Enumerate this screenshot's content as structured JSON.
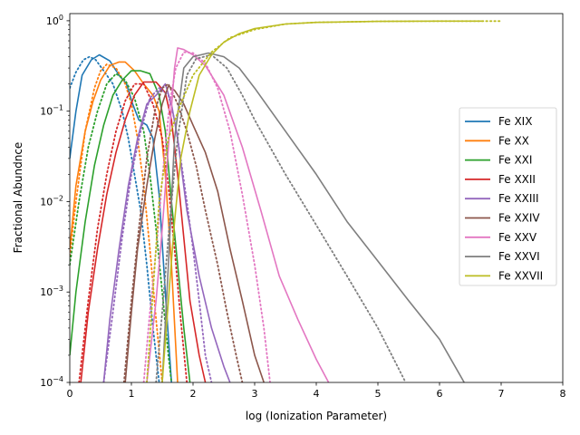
{
  "chart_data": {
    "type": "line",
    "title": "",
    "xlabel": "log (Ionization Parameter)",
    "ylabel": "Fractional Abundnce",
    "xlim": [
      0,
      8
    ],
    "ylim": [
      0.0001,
      1.2
    ],
    "yscale": "log",
    "xticks": [
      "0",
      "1",
      "2",
      "3",
      "4",
      "5",
      "6",
      "7",
      "8"
    ],
    "yticks": [
      {
        "value": 0.0001,
        "base": "10",
        "exp": "−4"
      },
      {
        "value": 0.001,
        "base": "10",
        "exp": "−3"
      },
      {
        "value": 0.01,
        "base": "10",
        "exp": "−2"
      },
      {
        "value": 0.1,
        "base": "10",
        "exp": "−1"
      },
      {
        "value": 1,
        "base": "10",
        "exp": "0"
      }
    ],
    "grid": false,
    "legend": "center-right",
    "series": [
      {
        "name": "Fe XIX",
        "color": "#1f77b4",
        "solid": [
          [
            0,
            0.03
          ],
          [
            0.1,
            0.1
          ],
          [
            0.2,
            0.25
          ],
          [
            0.35,
            0.37
          ],
          [
            0.48,
            0.42
          ],
          [
            0.65,
            0.36
          ],
          [
            0.8,
            0.25
          ],
          [
            0.92,
            0.2
          ],
          [
            1.02,
            0.12
          ],
          [
            1.12,
            0.08
          ],
          [
            1.25,
            0.07
          ],
          [
            1.35,
            0.05
          ],
          [
            1.45,
            0.012
          ],
          [
            1.55,
            0.001
          ],
          [
            1.65,
            0.0001
          ]
        ],
        "dotted": [
          [
            0,
            0.18
          ],
          [
            0.1,
            0.27
          ],
          [
            0.22,
            0.37
          ],
          [
            0.32,
            0.4
          ],
          [
            0.42,
            0.37
          ],
          [
            0.55,
            0.28
          ],
          [
            0.7,
            0.2
          ],
          [
            0.85,
            0.1
          ],
          [
            0.95,
            0.05
          ],
          [
            1.05,
            0.02
          ],
          [
            1.15,
            0.008
          ],
          [
            1.25,
            0.002
          ],
          [
            1.35,
            0.0004
          ],
          [
            1.45,
            0.0001
          ]
        ]
      },
      {
        "name": "Fe XX",
        "color": "#ff7f0e",
        "solid": [
          [
            0,
            0.003
          ],
          [
            0.1,
            0.015
          ],
          [
            0.25,
            0.06
          ],
          [
            0.38,
            0.13
          ],
          [
            0.5,
            0.22
          ],
          [
            0.65,
            0.32
          ],
          [
            0.8,
            0.35
          ],
          [
            0.9,
            0.35
          ],
          [
            1.05,
            0.28
          ],
          [
            1.2,
            0.2
          ],
          [
            1.35,
            0.15
          ],
          [
            1.45,
            0.1
          ],
          [
            1.55,
            0.02
          ],
          [
            1.65,
            0.002
          ],
          [
            1.75,
            0.0001
          ]
        ],
        "dotted": [
          [
            0,
            0.0025
          ],
          [
            0.1,
            0.01
          ],
          [
            0.25,
            0.06
          ],
          [
            0.4,
            0.18
          ],
          [
            0.5,
            0.28
          ],
          [
            0.6,
            0.33
          ],
          [
            0.75,
            0.3
          ],
          [
            0.9,
            0.2
          ],
          [
            1.0,
            0.12
          ],
          [
            1.1,
            0.05
          ],
          [
            1.2,
            0.015
          ],
          [
            1.3,
            0.003
          ],
          [
            1.4,
            0.0005
          ],
          [
            1.5,
            0.0001
          ]
        ]
      },
      {
        "name": "Fe XXI",
        "color": "#2ca02c",
        "solid": [
          [
            0,
            0.0002
          ],
          [
            0.1,
            0.001
          ],
          [
            0.25,
            0.006
          ],
          [
            0.4,
            0.025
          ],
          [
            0.55,
            0.07
          ],
          [
            0.7,
            0.15
          ],
          [
            0.85,
            0.22
          ],
          [
            1.0,
            0.28
          ],
          [
            1.15,
            0.28
          ],
          [
            1.3,
            0.26
          ],
          [
            1.45,
            0.15
          ],
          [
            1.55,
            0.06
          ],
          [
            1.65,
            0.01
          ],
          [
            1.75,
            0.002
          ],
          [
            1.85,
            0.0004
          ],
          [
            1.95,
            0.0001
          ]
        ],
        "dotted": [
          [
            0,
            0.002
          ],
          [
            0.15,
            0.01
          ],
          [
            0.3,
            0.04
          ],
          [
            0.45,
            0.1
          ],
          [
            0.6,
            0.2
          ],
          [
            0.75,
            0.26
          ],
          [
            0.9,
            0.22
          ],
          [
            1.05,
            0.14
          ],
          [
            1.2,
            0.06
          ],
          [
            1.3,
            0.02
          ],
          [
            1.4,
            0.005
          ],
          [
            1.5,
            0.001
          ],
          [
            1.6,
            0.0002
          ],
          [
            1.65,
            0.0001
          ]
        ]
      },
      {
        "name": "Fe XXII",
        "color": "#d62728",
        "solid": [
          [
            0.18,
            0.0001
          ],
          [
            0.3,
            0.0006
          ],
          [
            0.45,
            0.003
          ],
          [
            0.6,
            0.012
          ],
          [
            0.75,
            0.035
          ],
          [
            0.9,
            0.08
          ],
          [
            1.05,
            0.15
          ],
          [
            1.2,
            0.21
          ],
          [
            1.4,
            0.21
          ],
          [
            1.55,
            0.16
          ],
          [
            1.65,
            0.08
          ],
          [
            1.75,
            0.02
          ],
          [
            1.85,
            0.004
          ],
          [
            1.95,
            0.0008
          ],
          [
            2.1,
            0.0002
          ],
          [
            2.2,
            0.0001
          ]
        ],
        "dotted": [
          [
            0.15,
            0.0001
          ],
          [
            0.3,
            0.0008
          ],
          [
            0.45,
            0.005
          ],
          [
            0.6,
            0.02
          ],
          [
            0.75,
            0.06
          ],
          [
            0.9,
            0.13
          ],
          [
            1.05,
            0.2
          ],
          [
            1.2,
            0.2
          ],
          [
            1.35,
            0.12
          ],
          [
            1.5,
            0.05
          ],
          [
            1.6,
            0.015
          ],
          [
            1.7,
            0.003
          ],
          [
            1.8,
            0.0005
          ],
          [
            1.9,
            0.0001
          ]
        ]
      },
      {
        "name": "Fe XXIII",
        "color": "#9467bd",
        "solid": [
          [
            0.55,
            0.0001
          ],
          [
            0.65,
            0.0005
          ],
          [
            0.8,
            0.003
          ],
          [
            0.95,
            0.015
          ],
          [
            1.1,
            0.05
          ],
          [
            1.25,
            0.12
          ],
          [
            1.4,
            0.15
          ],
          [
            1.55,
            0.2
          ],
          [
            1.65,
            0.12
          ],
          [
            1.75,
            0.05
          ],
          [
            1.9,
            0.008
          ],
          [
            2.1,
            0.0015
          ],
          [
            2.3,
            0.0004
          ],
          [
            2.5,
            0.00015
          ],
          [
            2.6,
            0.0001
          ]
        ],
        "dotted": [
          [
            0.55,
            0.0001
          ],
          [
            0.7,
            0.0006
          ],
          [
            0.85,
            0.004
          ],
          [
            1.0,
            0.02
          ],
          [
            1.15,
            0.06
          ],
          [
            1.3,
            0.14
          ],
          [
            1.45,
            0.18
          ],
          [
            1.6,
            0.15
          ],
          [
            1.7,
            0.08
          ],
          [
            1.8,
            0.03
          ],
          [
            1.9,
            0.01
          ],
          [
            2.0,
            0.003
          ],
          [
            2.1,
            0.0008
          ],
          [
            2.2,
            0.0002
          ],
          [
            2.3,
            0.0001
          ]
        ]
      },
      {
        "name": "Fe XXIV",
        "color": "#8c564b",
        "solid": [
          [
            0.9,
            0.0001
          ],
          [
            1.0,
            0.0006
          ],
          [
            1.1,
            0.003
          ],
          [
            1.25,
            0.015
          ],
          [
            1.38,
            0.05
          ],
          [
            1.5,
            0.12
          ],
          [
            1.6,
            0.19
          ],
          [
            1.7,
            0.17
          ],
          [
            1.85,
            0.12
          ],
          [
            2.0,
            0.07
          ],
          [
            2.2,
            0.035
          ],
          [
            2.4,
            0.013
          ],
          [
            2.6,
            0.003
          ],
          [
            2.8,
            0.0008
          ],
          [
            3.0,
            0.0002
          ],
          [
            3.15,
            0.0001
          ]
        ],
        "dotted": [
          [
            0.88,
            0.0001
          ],
          [
            1.0,
            0.0008
          ],
          [
            1.12,
            0.005
          ],
          [
            1.25,
            0.03
          ],
          [
            1.38,
            0.1
          ],
          [
            1.5,
            0.18
          ],
          [
            1.6,
            0.2
          ],
          [
            1.75,
            0.12
          ],
          [
            1.9,
            0.06
          ],
          [
            2.05,
            0.025
          ],
          [
            2.2,
            0.008
          ],
          [
            2.4,
            0.002
          ],
          [
            2.55,
            0.0006
          ],
          [
            2.7,
            0.0002
          ],
          [
            2.8,
            0.0001
          ]
        ]
      },
      {
        "name": "Fe XXV",
        "color": "#e377c2",
        "solid": [
          [
            1.25,
            0.0001
          ],
          [
            1.4,
            0.0008
          ],
          [
            1.5,
            0.005
          ],
          [
            1.6,
            0.04
          ],
          [
            1.7,
            0.3
          ],
          [
            1.75,
            0.5
          ],
          [
            1.85,
            0.48
          ],
          [
            2.0,
            0.42
          ],
          [
            2.2,
            0.32
          ],
          [
            2.5,
            0.15
          ],
          [
            2.8,
            0.04
          ],
          [
            3.1,
            0.008
          ],
          [
            3.4,
            0.0015
          ],
          [
            3.7,
            0.0005
          ],
          [
            4.0,
            0.00018
          ],
          [
            4.2,
            0.0001
          ]
        ],
        "dotted": [
          [
            1.2,
            0.0001
          ],
          [
            1.3,
            0.0006
          ],
          [
            1.42,
            0.004
          ],
          [
            1.52,
            0.025
          ],
          [
            1.62,
            0.12
          ],
          [
            1.72,
            0.3
          ],
          [
            1.85,
            0.45
          ],
          [
            2.0,
            0.44
          ],
          [
            2.2,
            0.34
          ],
          [
            2.4,
            0.18
          ],
          [
            2.6,
            0.06
          ],
          [
            2.8,
            0.012
          ],
          [
            3.0,
            0.002
          ],
          [
            3.15,
            0.0004
          ],
          [
            3.25,
            0.0001
          ]
        ]
      },
      {
        "name": "Fe XXVI",
        "color": "#7f7f7f",
        "solid": [
          [
            1.5,
            0.0001
          ],
          [
            1.6,
            0.002
          ],
          [
            1.7,
            0.05
          ],
          [
            1.85,
            0.3
          ],
          [
            2.0,
            0.4
          ],
          [
            2.25,
            0.44
          ],
          [
            2.5,
            0.4
          ],
          [
            2.75,
            0.3
          ],
          [
            3.0,
            0.18
          ],
          [
            3.5,
            0.06
          ],
          [
            4.0,
            0.02
          ],
          [
            4.5,
            0.006
          ],
          [
            5.0,
            0.0022
          ],
          [
            5.5,
            0.0008
          ],
          [
            6.0,
            0.0003
          ],
          [
            6.4,
            0.0001
          ]
        ],
        "dotted": [
          [
            1.4,
            0.0001
          ],
          [
            1.5,
            0.0006
          ],
          [
            1.62,
            0.006
          ],
          [
            1.75,
            0.05
          ],
          [
            1.9,
            0.25
          ],
          [
            2.05,
            0.38
          ],
          [
            2.3,
            0.42
          ],
          [
            2.55,
            0.3
          ],
          [
            2.8,
            0.15
          ],
          [
            3.0,
            0.08
          ],
          [
            3.5,
            0.02
          ],
          [
            4.0,
            0.0055
          ],
          [
            4.5,
            0.0015
          ],
          [
            5.0,
            0.0004
          ],
          [
            5.45,
            0.0001
          ]
        ]
      },
      {
        "name": "Fe XXVII",
        "color": "#bcbd22",
        "solid": [
          [
            1.5,
            0.0001
          ],
          [
            1.6,
            0.0008
          ],
          [
            1.7,
            0.006
          ],
          [
            1.8,
            0.03
          ],
          [
            1.95,
            0.1
          ],
          [
            2.1,
            0.25
          ],
          [
            2.3,
            0.42
          ],
          [
            2.5,
            0.58
          ],
          [
            2.75,
            0.72
          ],
          [
            3.0,
            0.82
          ],
          [
            3.5,
            0.92
          ],
          [
            4.0,
            0.96
          ],
          [
            5.0,
            0.985
          ],
          [
            6.0,
            0.99
          ],
          [
            6.7,
            0.99
          ]
        ],
        "dotted": [
          [
            1.25,
            0.0001
          ],
          [
            1.35,
            0.001
          ],
          [
            1.45,
            0.01
          ],
          [
            1.6,
            0.05
          ],
          [
            1.8,
            0.12
          ],
          [
            2.0,
            0.25
          ],
          [
            2.3,
            0.45
          ],
          [
            2.6,
            0.65
          ],
          [
            3.0,
            0.8
          ],
          [
            3.5,
            0.92
          ],
          [
            4.0,
            0.96
          ],
          [
            5.0,
            0.985
          ],
          [
            6.0,
            0.99
          ],
          [
            7.0,
            0.99
          ]
        ]
      }
    ]
  }
}
